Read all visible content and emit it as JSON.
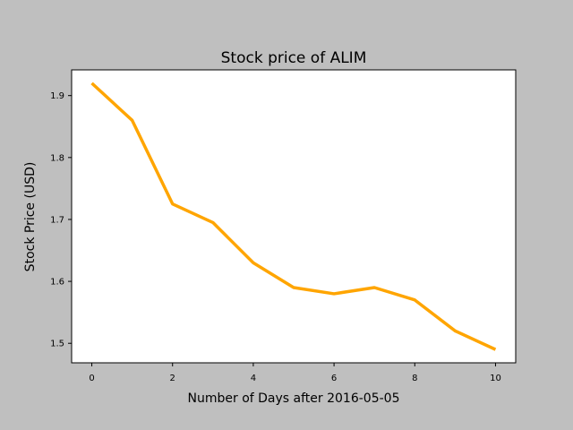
{
  "chart_data": {
    "type": "line",
    "title": "Stock price of ALIM",
    "xlabel": "Number of Days after 2016-05-05",
    "ylabel": "Stock Price (USD)",
    "x": [
      0,
      1,
      2,
      3,
      4,
      5,
      6,
      7,
      8,
      9,
      10
    ],
    "series": [
      {
        "values": [
          1.92,
          1.86,
          1.725,
          1.695,
          1.63,
          1.59,
          1.58,
          1.59,
          1.57,
          1.52,
          1.49
        ],
        "color": "#ffa500"
      }
    ],
    "xlim": [
      -0.5,
      10.5
    ],
    "ylim": [
      1.4685,
      1.9415
    ],
    "xticks": [
      "0",
      "2",
      "4",
      "6",
      "8",
      "10"
    ],
    "yticks": [
      "1.5",
      "1.6",
      "1.7",
      "1.8",
      "1.9"
    ],
    "grid": false,
    "colors": {
      "figure_background": "#bfbfbf",
      "plot_background": "#ffffff",
      "line": "#ffa500"
    }
  }
}
